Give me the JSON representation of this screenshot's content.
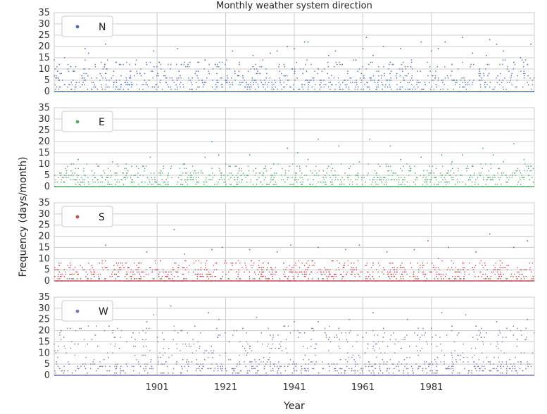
{
  "chart_data": {
    "type": "scatter",
    "title": "Monthly weather system direction",
    "xlabel": "Year",
    "ylabel": "Frequency (days/month)",
    "xlim": [
      1871,
      2011
    ],
    "x_ticks": [
      1901,
      1921,
      1941,
      1961,
      1981
    ],
    "ylim": [
      0,
      35
    ],
    "y_ticks": [
      0,
      5,
      10,
      15,
      20,
      25,
      30,
      35
    ],
    "grid": true,
    "legend_position": "top-left",
    "background": "#ffffff",
    "grid_color": "#cccccc",
    "panels": [
      {
        "name": "N",
        "color": "#4c72b0",
        "points": [
          [
            1872,
            9
          ],
          [
            1874,
            15
          ],
          [
            1876,
            1
          ],
          [
            1880,
            19
          ],
          [
            1881,
            17
          ],
          [
            1883,
            2
          ],
          [
            1886,
            21
          ],
          [
            1889,
            13
          ],
          [
            1890,
            12
          ],
          [
            1893,
            3
          ],
          [
            1896,
            8
          ],
          [
            1898,
            12
          ],
          [
            1900,
            18
          ],
          [
            1903,
            7
          ],
          [
            1907,
            19
          ],
          [
            1910,
            12
          ],
          [
            1913,
            9
          ],
          [
            1915,
            14
          ],
          [
            1918,
            12
          ],
          [
            1921,
            5
          ],
          [
            1923,
            18
          ],
          [
            1926,
            7
          ],
          [
            1929,
            16
          ],
          [
            1931,
            8
          ],
          [
            1934,
            17
          ],
          [
            1936,
            18
          ],
          [
            1938,
            12
          ],
          [
            1939,
            20
          ],
          [
            1941,
            19
          ],
          [
            1944,
            22
          ],
          [
            1945,
            22
          ],
          [
            1948,
            10
          ],
          [
            1951,
            16
          ],
          [
            1953,
            18
          ],
          [
            1955,
            12
          ],
          [
            1959,
            14
          ],
          [
            1961,
            19
          ],
          [
            1962,
            24
          ],
          [
            1964,
            16
          ],
          [
            1967,
            20
          ],
          [
            1969,
            13
          ],
          [
            1972,
            19
          ],
          [
            1975,
            11
          ],
          [
            1978,
            22
          ],
          [
            1981,
            18
          ],
          [
            1983,
            19
          ],
          [
            1985,
            22
          ],
          [
            1987,
            12
          ],
          [
            1990,
            24
          ],
          [
            1993,
            17
          ],
          [
            1995,
            10
          ],
          [
            1997,
            16
          ],
          [
            1998,
            23
          ],
          [
            2000,
            21
          ],
          [
            2002,
            18
          ],
          [
            2005,
            13
          ],
          [
            2007,
            15
          ],
          [
            2009,
            12
          ],
          [
            2010,
            21
          ]
        ]
      },
      {
        "name": "E",
        "color": "#55a868",
        "points": [
          [
            1873,
            6
          ],
          [
            1876,
            10
          ],
          [
            1878,
            12
          ],
          [
            1882,
            7
          ],
          [
            1885,
            4
          ],
          [
            1888,
            11
          ],
          [
            1892,
            5
          ],
          [
            1895,
            9
          ],
          [
            1899,
            13
          ],
          [
            1902,
            6
          ],
          [
            1905,
            8
          ],
          [
            1909,
            10
          ],
          [
            1912,
            7
          ],
          [
            1915,
            13
          ],
          [
            1917,
            20
          ],
          [
            1919,
            14
          ],
          [
            1922,
            9
          ],
          [
            1925,
            8
          ],
          [
            1928,
            14
          ],
          [
            1932,
            6
          ],
          [
            1935,
            10
          ],
          [
            1939,
            17
          ],
          [
            1942,
            15
          ],
          [
            1945,
            12
          ],
          [
            1948,
            21
          ],
          [
            1951,
            9
          ],
          [
            1954,
            18
          ],
          [
            1957,
            8
          ],
          [
            1960,
            11
          ],
          [
            1963,
            21
          ],
          [
            1966,
            9
          ],
          [
            1969,
            18
          ],
          [
            1972,
            12
          ],
          [
            1975,
            8
          ],
          [
            1978,
            13
          ],
          [
            1981,
            6
          ],
          [
            1984,
            14
          ],
          [
            1987,
            11
          ],
          [
            1990,
            14
          ],
          [
            1993,
            9
          ],
          [
            1996,
            17
          ],
          [
            1999,
            14
          ],
          [
            2002,
            11
          ],
          [
            2005,
            19
          ],
          [
            2008,
            12
          ],
          [
            2010,
            9
          ]
        ]
      },
      {
        "name": "S",
        "color": "#c44e52",
        "points": [
          [
            1874,
            5
          ],
          [
            1878,
            3
          ],
          [
            1882,
            7
          ],
          [
            1886,
            16
          ],
          [
            1890,
            6
          ],
          [
            1894,
            4
          ],
          [
            1898,
            13
          ],
          [
            1902,
            9
          ],
          [
            1906,
            23
          ],
          [
            1909,
            12
          ],
          [
            1913,
            5
          ],
          [
            1917,
            14
          ],
          [
            1920,
            15
          ],
          [
            1924,
            8
          ],
          [
            1928,
            14
          ],
          [
            1932,
            6
          ],
          [
            1936,
            13
          ],
          [
            1940,
            16
          ],
          [
            1944,
            7
          ],
          [
            1948,
            15
          ],
          [
            1952,
            9
          ],
          [
            1956,
            14
          ],
          [
            1960,
            16
          ],
          [
            1964,
            8
          ],
          [
            1968,
            13
          ],
          [
            1972,
            7
          ],
          [
            1976,
            14
          ],
          [
            1980,
            18
          ],
          [
            1983,
            10
          ],
          [
            1986,
            15
          ],
          [
            1990,
            8
          ],
          [
            1994,
            13
          ],
          [
            1998,
            21
          ],
          [
            2001,
            9
          ],
          [
            2005,
            15
          ],
          [
            2009,
            18
          ]
        ]
      },
      {
        "name": "W",
        "color": "#8172b2",
        "points": [
          [
            1873,
            20
          ],
          [
            1877,
            14
          ],
          [
            1880,
            25
          ],
          [
            1883,
            18
          ],
          [
            1887,
            22
          ],
          [
            1890,
            12
          ],
          [
            1894,
            19
          ],
          [
            1898,
            24
          ],
          [
            1900,
            27
          ],
          [
            1903,
            16
          ],
          [
            1905,
            31
          ],
          [
            1908,
            20
          ],
          [
            1912,
            22
          ],
          [
            1916,
            28
          ],
          [
            1919,
            25
          ],
          [
            1922,
            15
          ],
          [
            1926,
            21
          ],
          [
            1930,
            26
          ],
          [
            1934,
            18
          ],
          [
            1938,
            22
          ],
          [
            1941,
            24
          ],
          [
            1944,
            19
          ],
          [
            1948,
            24
          ],
          [
            1951,
            16
          ],
          [
            1954,
            21
          ],
          [
            1957,
            25
          ],
          [
            1961,
            17
          ],
          [
            1964,
            28
          ],
          [
            1967,
            21
          ],
          [
            1970,
            19
          ],
          [
            1974,
            25
          ],
          [
            1977,
            18
          ],
          [
            1981,
            21
          ],
          [
            1984,
            28
          ],
          [
            1987,
            22
          ],
          [
            1991,
            27
          ],
          [
            1994,
            22
          ],
          [
            1997,
            19
          ],
          [
            2000,
            24
          ],
          [
            2003,
            21
          ],
          [
            2006,
            16
          ],
          [
            2009,
            25
          ]
        ]
      }
    ]
  }
}
